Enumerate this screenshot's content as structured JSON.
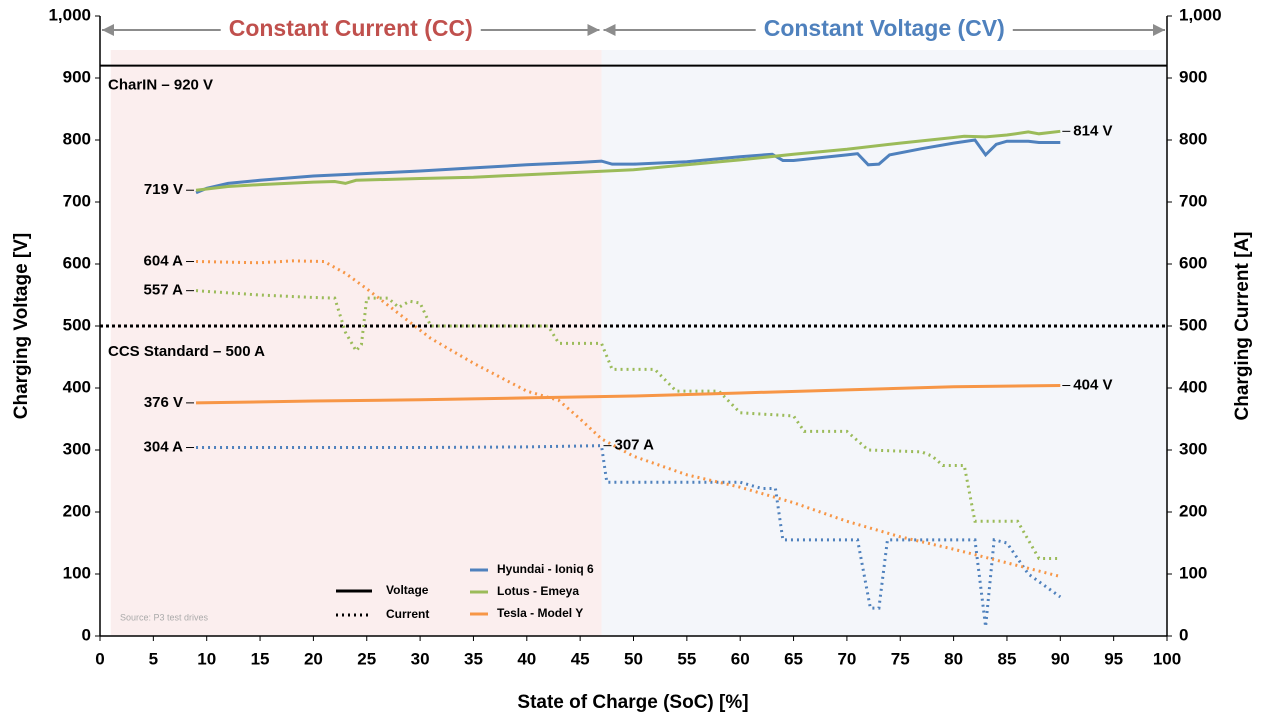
{
  "chart_data": {
    "type": "line",
    "xlabel": "State of Charge (SoC) [%]",
    "ylabel": "Charging Voltage [V]",
    "y2label": "Charging Current [A]",
    "source": "Source: P3 test drives",
    "xlim": [
      0,
      100
    ],
    "xticks": [
      0,
      5,
      10,
      15,
      20,
      25,
      30,
      35,
      40,
      45,
      50,
      55,
      60,
      65,
      70,
      75,
      80,
      85,
      90,
      95,
      100
    ],
    "ylim": [
      0,
      1000
    ],
    "yticks": [
      0,
      100,
      200,
      300,
      400,
      500,
      600,
      700,
      800,
      900,
      {
        "value": 1000,
        "label": "1,000"
      }
    ],
    "y2lim": [
      0,
      1000
    ],
    "y2ticks": [
      0,
      100,
      200,
      300,
      400,
      500,
      600,
      700,
      800,
      900,
      {
        "value": 1000,
        "label": "1,000"
      }
    ],
    "regions": [
      {
        "label": "Constant Current (CC)",
        "xlim": [
          1,
          47
        ],
        "color": "#fbeeee",
        "text_color": "#c0504d"
      },
      {
        "label": "Constant Voltage (CV)",
        "xlim": [
          47,
          100
        ],
        "color": "#f4f6fa",
        "text_color": "#4f81bd"
      }
    ],
    "reference_lines": [
      {
        "value": 920,
        "label": "CharIN – 920 V"
      },
      {
        "value": 500,
        "label": "CCS Standard – 500 A"
      }
    ],
    "line_styles": [
      {
        "label": "Voltage",
        "dash": "solid"
      },
      {
        "label": "Current",
        "dash": "dotted"
      }
    ],
    "series": [
      {
        "name": "Hyundai - Ioniq 6",
        "color": "#4f81bd",
        "voltage": {
          "x": [
            9,
            10,
            12,
            15,
            20,
            25,
            30,
            35,
            40,
            45,
            47,
            48,
            50,
            55,
            60,
            63,
            64,
            65,
            70,
            71,
            72,
            73,
            74,
            77,
            80,
            82,
            83,
            84,
            85,
            87,
            88,
            90
          ],
          "values": [
            715,
            722,
            730,
            735,
            742,
            746,
            750,
            755,
            760,
            764,
            766,
            761,
            761,
            765,
            773,
            777,
            767,
            767,
            776,
            778,
            760,
            761,
            776,
            786,
            795,
            800,
            776,
            793,
            798,
            798,
            796,
            796
          ]
        },
        "current": {
          "x": [
            9,
            20,
            30,
            40,
            47,
            47.5,
            60,
            62,
            63.3,
            64,
            71,
            72.2,
            73,
            73.8,
            82,
            83,
            83.8,
            85,
            87,
            90
          ],
          "values": [
            304,
            304,
            304,
            305,
            307,
            248,
            248,
            238,
            238,
            155,
            155,
            45,
            45,
            155,
            155,
            15,
            155,
            150,
            100,
            63
          ]
        }
      },
      {
        "name": "Lotus - Emeya",
        "color": "#9bbb59",
        "voltage": {
          "x": [
            9,
            12,
            15,
            20,
            22,
            23,
            24,
            30,
            35,
            40,
            45,
            50,
            55,
            60,
            65,
            70,
            75,
            80,
            81,
            83,
            85,
            87,
            88,
            90
          ],
          "values": [
            719,
            725,
            728,
            732,
            733,
            730,
            735,
            738,
            740,
            744,
            748,
            752,
            760,
            768,
            777,
            785,
            795,
            804,
            806,
            805,
            808,
            813,
            810,
            814
          ]
        },
        "current": {
          "x": [
            9,
            15,
            20,
            22,
            23,
            24,
            24.5,
            25,
            27,
            28,
            29,
            30,
            31,
            32,
            40,
            42,
            43,
            47,
            48,
            52,
            54,
            58,
            60,
            65,
            66,
            70,
            72,
            77,
            78,
            79,
            81,
            82,
            84,
            86,
            87,
            88,
            90
          ],
          "values": [
            557,
            550,
            546,
            545,
            490,
            460,
            470,
            545,
            545,
            530,
            540,
            537,
            500,
            500,
            500,
            500,
            472,
            472,
            430,
            430,
            395,
            395,
            360,
            355,
            330,
            330,
            300,
            297,
            290,
            275,
            275,
            185,
            185,
            185,
            155,
            125,
            125
          ]
        }
      },
      {
        "name": "Tesla - Model Y",
        "color": "#f79646",
        "voltage": {
          "x": [
            9,
            20,
            30,
            40,
            50,
            60,
            70,
            80,
            90
          ],
          "values": [
            376,
            379,
            381,
            384,
            387,
            392,
            397,
            402,
            404
          ]
        },
        "current": {
          "x": [
            9,
            15,
            18,
            21,
            23,
            25,
            28,
            31,
            35,
            40,
            43,
            45,
            47,
            50,
            55,
            60,
            65,
            70,
            75,
            80,
            85,
            90
          ],
          "values": [
            604,
            602,
            605,
            604,
            585,
            560,
            520,
            480,
            440,
            395,
            380,
            350,
            318,
            290,
            260,
            240,
            215,
            185,
            160,
            140,
            118,
            96
          ]
        }
      }
    ],
    "annotations": [
      {
        "label": "719 V",
        "x": 9,
        "y": 719
      },
      {
        "label": "604 A",
        "x": 9,
        "y": 604
      },
      {
        "label": "557 A",
        "x": 9,
        "y": 557
      },
      {
        "label": "376 V",
        "x": 9,
        "y": 376
      },
      {
        "label": "304 A",
        "x": 9,
        "y": 304
      },
      {
        "label": "307 A",
        "x": 47,
        "y": 307
      },
      {
        "label": "814 V",
        "x": 90,
        "y": 814
      },
      {
        "label": "404 V",
        "x": 90,
        "y": 404
      }
    ]
  }
}
